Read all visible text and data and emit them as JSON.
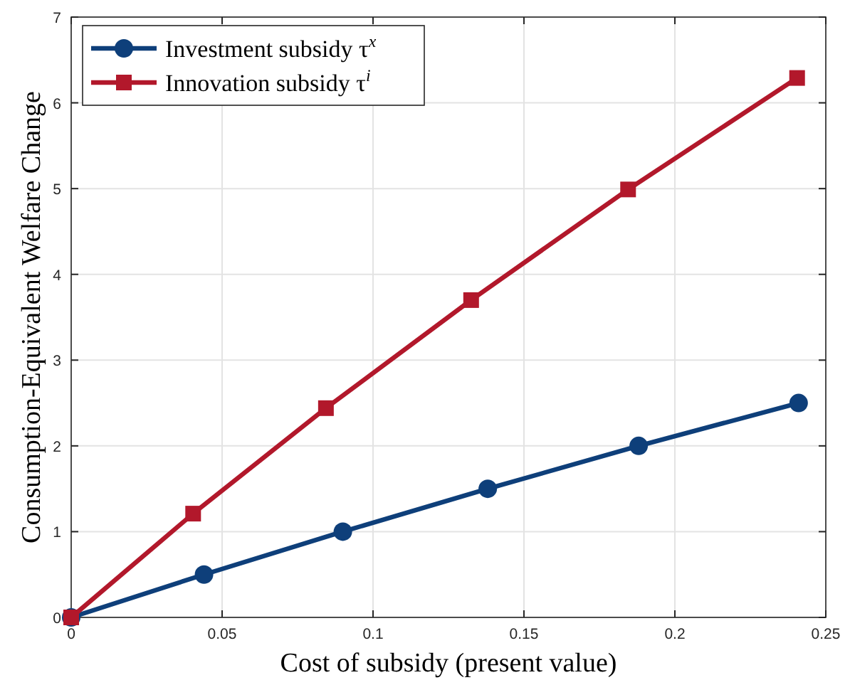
{
  "chart_data": {
    "type": "line",
    "xlabel": "Cost of subsidy (present value)",
    "ylabel": "Consumption-Equivalent Welfare Change",
    "xlim": [
      0,
      0.25
    ],
    "xticks": [
      0,
      0.05,
      0.1,
      0.15,
      0.2,
      0.25
    ],
    "ylim": [
      0,
      7
    ],
    "yticks": [
      0,
      1,
      2,
      3,
      4,
      5,
      6,
      7
    ],
    "grid": true,
    "legend": "top left",
    "line_style": "solid",
    "series": [
      {
        "name": "Investment subsidy τ$^{x}$",
        "color": "#0e3f7a",
        "marker": "circle",
        "x": [
          0,
          0.044,
          0.09,
          0.138,
          0.188,
          0.241
        ],
        "values": [
          0,
          0.5,
          1.0,
          1.5,
          2.0,
          2.5
        ]
      },
      {
        "name": "Innovation subsidy τ$^{i}$",
        "color": "#b2182b",
        "marker": "square",
        "x": [
          0,
          0.0404,
          0.0844,
          0.1325,
          0.1845,
          0.2405
        ],
        "values": [
          0,
          1.21,
          2.44,
          3.7,
          4.99,
          6.29
        ]
      }
    ]
  }
}
